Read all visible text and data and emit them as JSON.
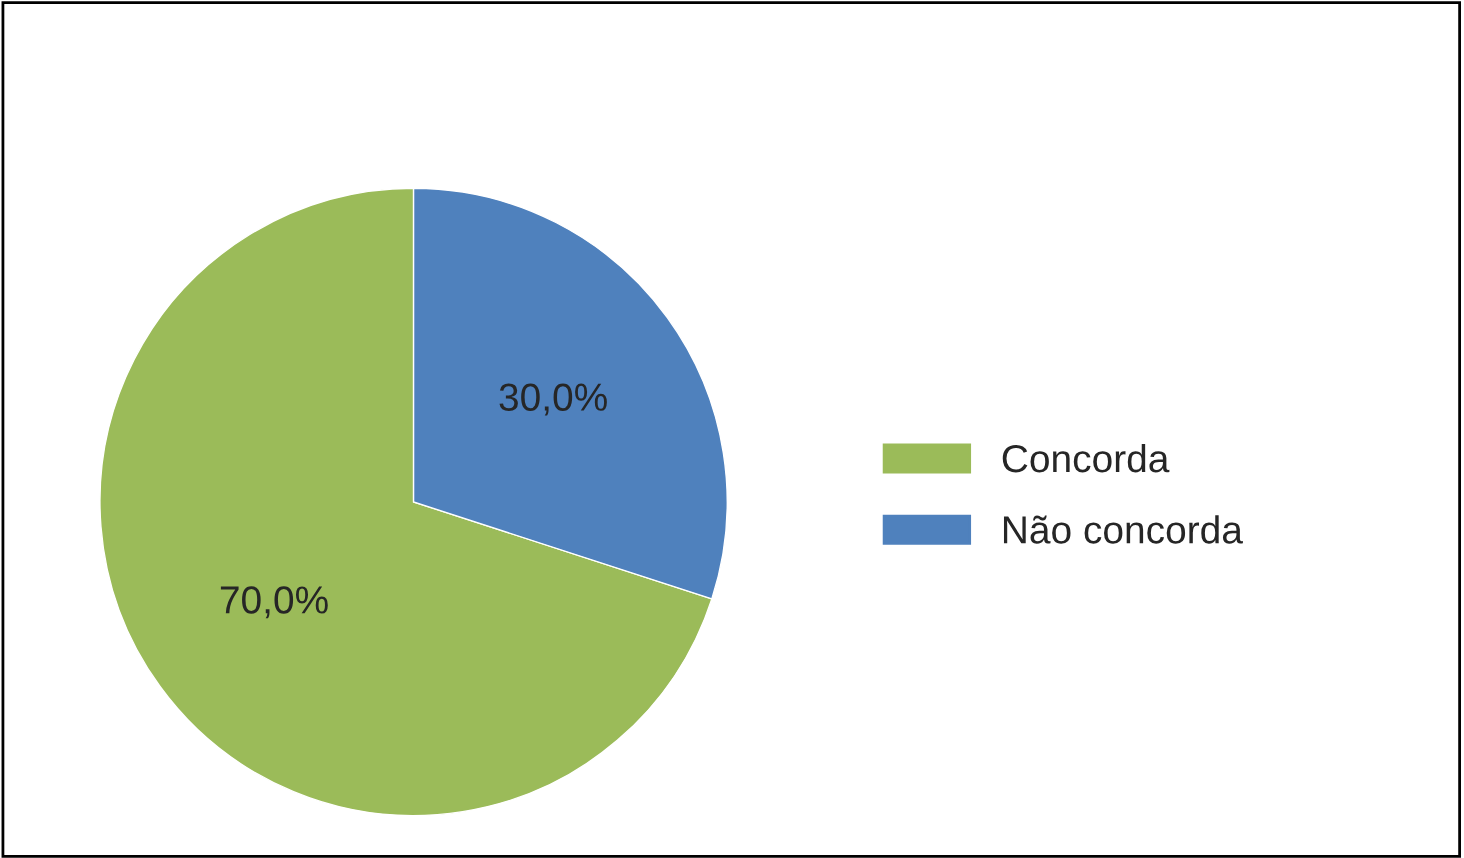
{
  "chart_data": {
    "type": "pie",
    "categories": [
      "Concorda",
      "Não concorda"
    ],
    "values": [
      70,
      30
    ],
    "value_labels": [
      "70,0%",
      "30,0%"
    ],
    "colors": [
      "#9bbb59",
      "#4f81bd"
    ],
    "legend": "right"
  }
}
